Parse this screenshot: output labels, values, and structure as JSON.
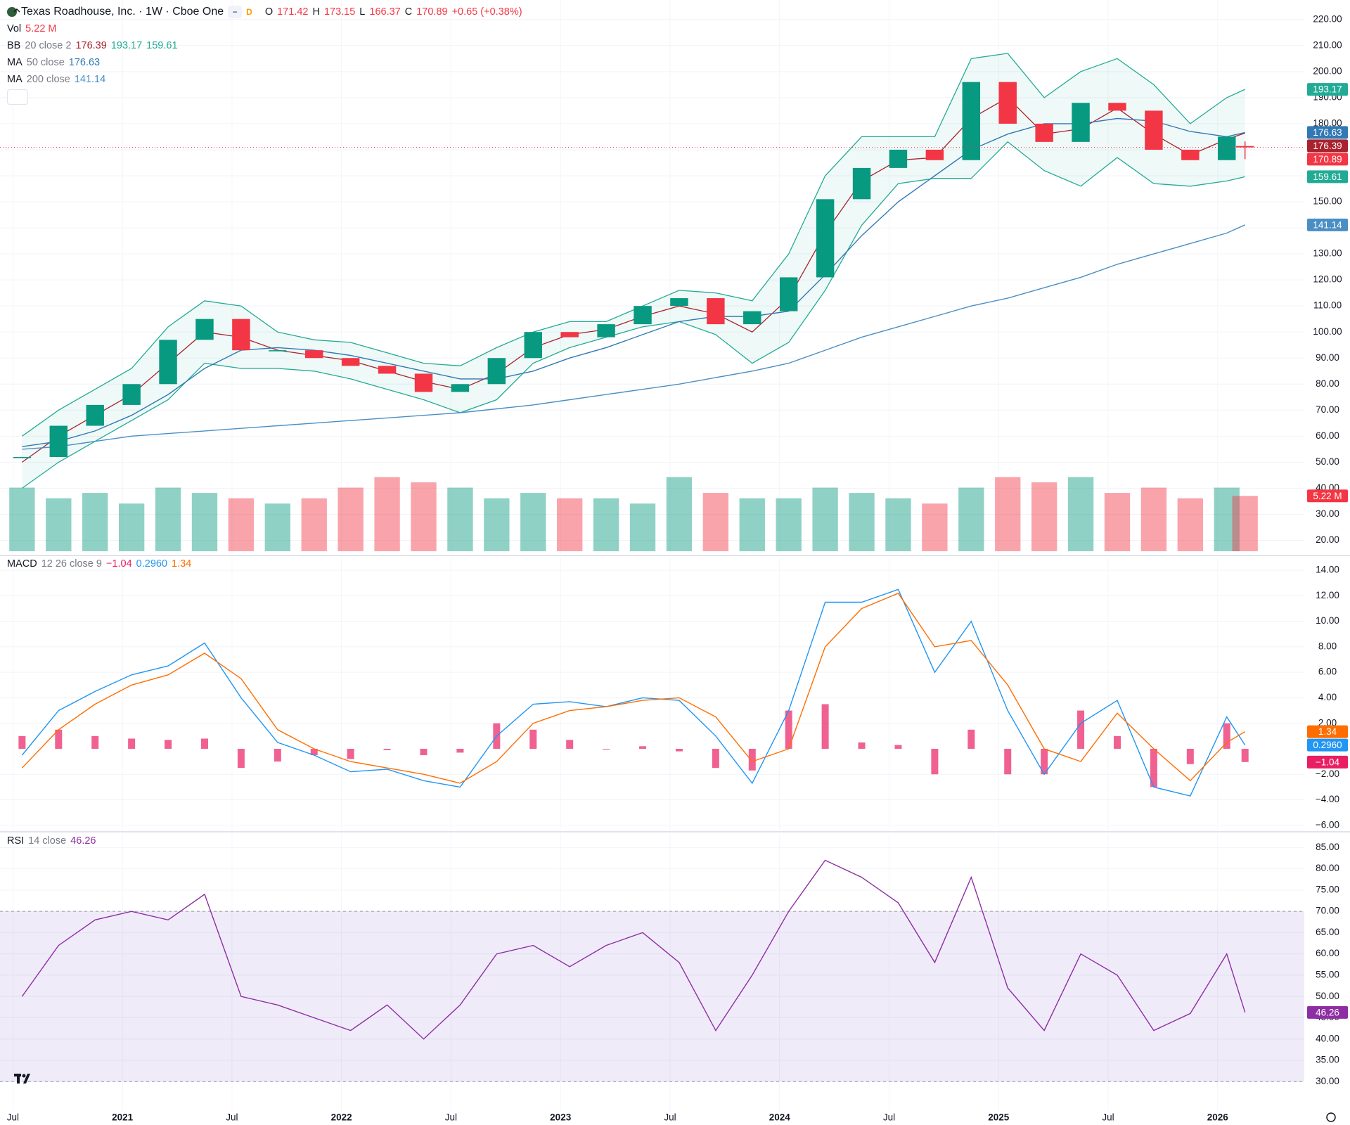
{
  "toolbar": {
    "badge": "D"
  },
  "chart_data": [
    {
      "type": "candlestick",
      "title": "Texas Roadhouse, Inc. · 1W · Cboe One",
      "ohlc_labels": [
        "O",
        "H",
        "L",
        "C"
      ],
      "open": 171.42,
      "high": 173.15,
      "low": 166.37,
      "change": "+0.65 (+0.38%)",
      "up_color": "#089981",
      "down_color": "#f23645",
      "x": [
        "2020-07",
        "2020-09",
        "2020-11",
        "2021-01",
        "2021-03",
        "2021-05",
        "2021-07",
        "2021-09",
        "2021-11",
        "2022-01",
        "2022-03",
        "2022-05",
        "2022-07",
        "2022-09",
        "2022-11",
        "2023-01",
        "2023-03",
        "2023-05",
        "2023-07",
        "2023-09",
        "2023-11",
        "2024-01",
        "2024-03",
        "2024-05",
        "2024-07",
        "2024-09",
        "2024-11",
        "2025-01",
        "2025-03",
        "2025-05",
        "2025-07",
        "2025-09",
        "2025-11",
        "2026-01",
        "2026-02"
      ],
      "values": [
        52,
        64,
        72,
        80,
        97,
        105,
        93,
        93,
        90,
        87,
        84,
        77,
        80,
        90,
        100,
        98,
        103,
        110,
        113,
        103,
        108,
        121,
        151,
        163,
        170,
        166,
        196,
        180,
        173,
        188,
        185,
        170,
        166,
        175,
        170.89
      ],
      "xticks": [
        {
          "value": "2020-07",
          "label": "Jul"
        },
        {
          "value": "2021-01",
          "label": "2021"
        },
        {
          "value": "2021-07",
          "label": "Jul"
        },
        {
          "value": "2022-01",
          "label": "2022"
        },
        {
          "value": "2022-07",
          "label": "Jul"
        },
        {
          "value": "2023-01",
          "label": "2023"
        },
        {
          "value": "2023-07",
          "label": "Jul"
        },
        {
          "value": "2024-01",
          "label": "2024"
        },
        {
          "value": "2024-07",
          "label": "Jul"
        },
        {
          "value": "2025-01",
          "label": "2025"
        },
        {
          "value": "2025-07",
          "label": "Jul"
        },
        {
          "value": "2026-01",
          "label": "2026"
        }
      ],
      "ylim": [
        15,
        227.5
      ],
      "yticks": [
        {
          "value": 220,
          "label": "220.00"
        },
        {
          "value": 210,
          "label": "210.00"
        },
        {
          "value": 200,
          "label": "200.00"
        },
        {
          "value": 190,
          "label": "190.00"
        },
        {
          "value": 180,
          "label": "180.00"
        },
        {
          "value": 170,
          "label": "170.00"
        },
        {
          "value": 160,
          "label": "160.00"
        },
        {
          "value": 150,
          "label": "150.00"
        },
        {
          "value": 140,
          "label": "140.00"
        },
        {
          "value": 130,
          "label": "130.00"
        },
        {
          "value": 120,
          "label": "120.00"
        },
        {
          "value": 110,
          "label": "110.00"
        },
        {
          "value": 100,
          "label": "100.00"
        },
        {
          "value": 90,
          "label": "90.00"
        },
        {
          "value": 80,
          "label": "80.00"
        },
        {
          "value": 70,
          "label": "70.00"
        },
        {
          "value": 60,
          "label": "60.00"
        },
        {
          "value": 50,
          "label": "50.00"
        },
        {
          "value": 40,
          "label": "40.00"
        },
        {
          "value": 30,
          "label": "30.00"
        },
        {
          "value": 20,
          "label": "20.00"
        }
      ],
      "volume": {
        "name": "Vol",
        "values": [
          6,
          5,
          5.5,
          4.5,
          6,
          5.5,
          5,
          4.5,
          5,
          6,
          7,
          6.5,
          6,
          5,
          5.5,
          5,
          5,
          4.5,
          7,
          5.5,
          5,
          5,
          6,
          5.5,
          5,
          4.5,
          6,
          7,
          6.5,
          7,
          5.5,
          6,
          5,
          6,
          5.22
        ],
        "last_label": "5.22 M",
        "ylim": [
          0,
          52
        ]
      },
      "bands": {
        "name": "BB",
        "params": "20 close 2",
        "color": "#22ab94",
        "basis_color": "#a8232f",
        "basis": [
          50,
          60,
          68,
          76,
          88,
          100,
          98,
          93,
          91,
          89,
          85,
          81,
          78,
          84,
          94,
          99,
          101,
          106,
          110,
          107,
          100,
          113,
          138,
          158,
          166,
          167,
          182,
          190,
          176,
          178,
          186,
          176,
          168,
          174,
          176.39
        ],
        "upper": [
          60,
          70,
          78,
          86,
          102,
          112,
          110,
          100,
          97,
          96,
          92,
          88,
          87,
          94,
          100,
          104,
          104,
          110,
          116,
          115,
          112,
          130,
          160,
          175,
          175,
          175,
          205,
          207,
          190,
          200,
          205,
          195,
          180,
          190,
          193.17
        ],
        "lower": [
          40,
          50,
          58,
          66,
          74,
          88,
          86,
          86,
          85,
          82,
          78,
          74,
          69,
          74,
          88,
          94,
          98,
          102,
          104,
          99,
          88,
          96,
          116,
          141,
          157,
          159,
          159,
          173,
          162,
          156,
          167,
          157,
          156,
          158,
          159.61
        ]
      },
      "series": [
        {
          "name": "MA",
          "params": "50 close",
          "color": "#3179b5",
          "values": [
            56,
            58,
            62,
            68,
            76,
            86,
            93,
            94,
            93,
            91,
            88,
            85,
            82,
            82,
            85,
            90,
            94,
            99,
            104,
            106,
            106,
            108,
            122,
            137,
            150,
            160,
            170,
            176,
            180,
            180,
            182,
            181,
            177,
            175,
            176.63
          ]
        },
        {
          "name": "MA",
          "params": "200 close",
          "color": "#4a8fc4",
          "values": [
            55,
            56,
            58,
            60,
            61,
            62,
            63,
            64,
            65,
            66,
            67,
            68,
            69,
            70.5,
            72,
            74,
            76,
            78,
            80,
            82.5,
            85,
            88,
            93,
            98,
            102,
            106,
            110,
            113,
            117,
            121,
            126,
            130,
            134,
            138,
            141.14
          ]
        }
      ]
    },
    {
      "type": "macd",
      "name": "MACD",
      "params": "12 26 close 9",
      "ylim": [
        -6.4,
        15
      ],
      "yticks": [
        {
          "value": 14,
          "label": "14.00"
        },
        {
          "value": 12,
          "label": "12.00"
        },
        {
          "value": 10,
          "label": "10.00"
        },
        {
          "value": 8,
          "label": "8.00"
        },
        {
          "value": 6,
          "label": "6.00"
        },
        {
          "value": 4,
          "label": "4.00"
        },
        {
          "value": 2,
          "label": "2.00"
        },
        {
          "value": -2,
          "label": "−2.00"
        },
        {
          "value": -4,
          "label": "−4.00"
        },
        {
          "value": -6,
          "label": "−6.00"
        }
      ],
      "series": [
        {
          "color": "#e91e63",
          "values": [
            1,
            1.5,
            1,
            0.8,
            0.7,
            0.8,
            -1.5,
            -1,
            -0.5,
            -0.8,
            -0.1,
            -0.5,
            -0.3,
            2,
            1.5,
            0.7,
            0,
            0.2,
            -0.2,
            -1.5,
            -1.7,
            3,
            3.5,
            0.5,
            0.3,
            -2,
            1.5,
            -2,
            -2,
            3,
            1,
            -3,
            -1.2,
            2,
            -1.04
          ],
          "last_label": "−1.04"
        },
        {
          "color": "#2196f3",
          "values": [
            -0.5,
            3,
            4.5,
            5.8,
            6.5,
            8.3,
            4,
            0.5,
            -0.5,
            -1.8,
            -1.6,
            -2.5,
            -3,
            1,
            3.5,
            3.7,
            3.3,
            4,
            3.8,
            1,
            -2.7,
            3,
            11.5,
            11.5,
            12.5,
            6,
            10,
            3,
            -2,
            2,
            3.8,
            -3,
            -3.7,
            2.5,
            0.296
          ],
          "last_label": "0.2960"
        },
        {
          "color": "#ff6d00",
          "values": [
            -1.5,
            1.5,
            3.5,
            5,
            5.8,
            7.5,
            5.5,
            1.5,
            0,
            -1,
            -1.5,
            -2,
            -2.7,
            -1,
            2,
            3,
            3.3,
            3.8,
            4,
            2.5,
            -1,
            0,
            8,
            11,
            12.2,
            8,
            8.5,
            5,
            0,
            -1,
            2.8,
            0,
            -2.5,
            0.5,
            1.34
          ]
        }
      ]
    },
    {
      "type": "rsi",
      "name": "RSI",
      "params": "14 close",
      "color": "#8e2ea4",
      "band_color": "#7e57c2",
      "values": [
        50,
        62,
        68,
        70,
        68,
        74,
        50,
        48,
        45,
        42,
        48,
        40,
        48,
        60,
        62,
        57,
        62,
        65,
        58,
        42,
        55,
        70,
        82,
        78,
        72,
        58,
        78,
        52,
        42,
        60,
        55,
        42,
        46,
        60,
        46.26
      ],
      "band": [
        30,
        70
      ],
      "ylim": [
        23.1,
        88.2
      ],
      "yticks": [
        {
          "value": 85,
          "label": "85.00"
        },
        {
          "value": 80,
          "label": "80.00"
        },
        {
          "value": 75,
          "label": "75.00"
        },
        {
          "value": 70,
          "label": "70.00"
        },
        {
          "value": 65,
          "label": "65.00"
        },
        {
          "value": 60,
          "label": "60.00"
        },
        {
          "value": 55,
          "label": "55.00"
        },
        {
          "value": 50,
          "label": "50.00"
        },
        {
          "value": 45,
          "label": "45.00"
        },
        {
          "value": 40,
          "label": "40.00"
        },
        {
          "value": 35,
          "label": "35.00"
        },
        {
          "value": 30,
          "label": "30.00"
        }
      ]
    }
  ]
}
